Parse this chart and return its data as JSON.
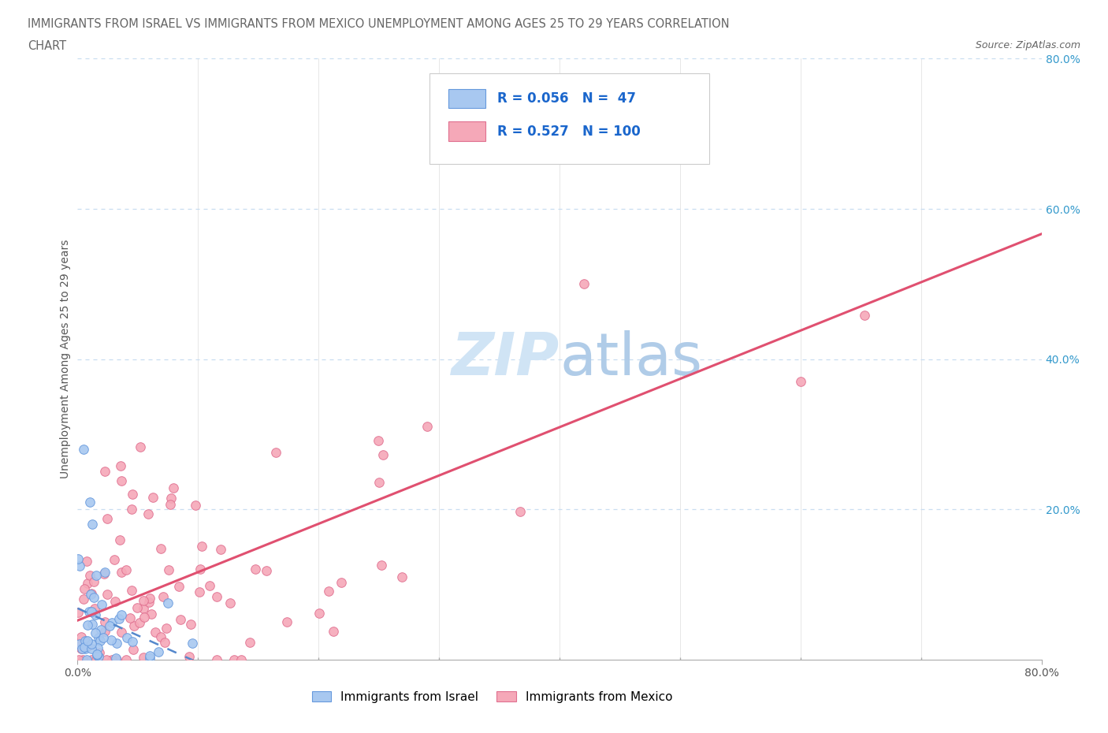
{
  "title_line1": "IMMIGRANTS FROM ISRAEL VS IMMIGRANTS FROM MEXICO UNEMPLOYMENT AMONG AGES 25 TO 29 YEARS CORRELATION",
  "title_line2": "CHART",
  "source_text": "Source: ZipAtlas.com",
  "ylabel": "Unemployment Among Ages 25 to 29 years",
  "xlim": [
    0.0,
    0.8
  ],
  "ylim": [
    0.0,
    0.8
  ],
  "israel_R": 0.056,
  "israel_N": 47,
  "mexico_R": 0.527,
  "mexico_N": 100,
  "israel_color": "#a8c8f0",
  "mexico_color": "#f5a8b8",
  "israel_edge_color": "#6699dd",
  "mexico_edge_color": "#e07090",
  "israel_line_color": "#5588cc",
  "mexico_line_color": "#e05070",
  "title_color": "#666666",
  "axis_tick_color": "#3399cc",
  "legend_text_color": "#1a66cc",
  "background_color": "#ffffff",
  "grid_color": "#c8ddf0",
  "watermark_color": "#d0e4f5",
  "legend_label1": "Immigrants from Israel",
  "legend_label2": "Immigrants from Mexico"
}
